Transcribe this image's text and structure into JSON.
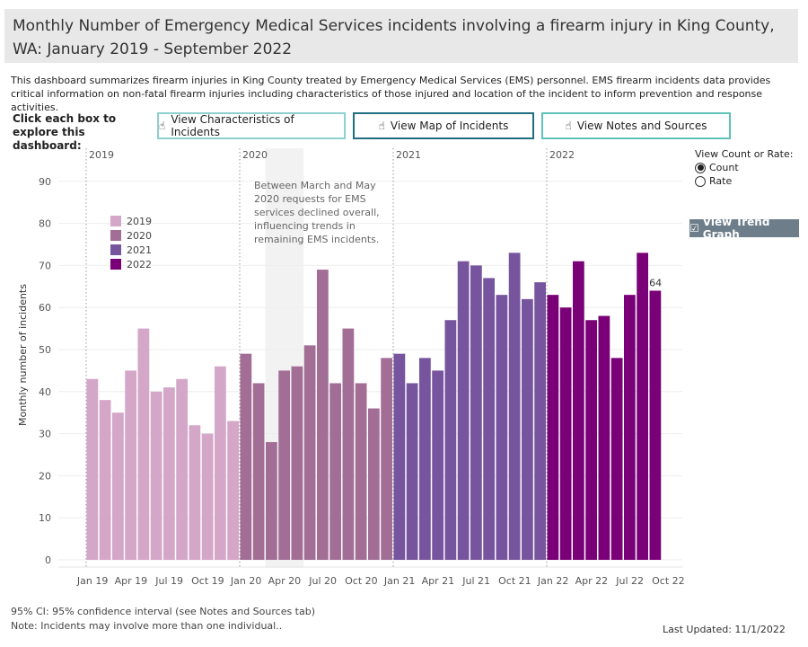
{
  "header": {
    "title": "Monthly Number of Emergency Medical Services incidents involving a firearm injury in King County, WA: January 2019 - September 2022",
    "description": "This dashboard summarizes firearm injuries in King County treated by Emergency Medical Services (EMS) personnel. EMS firearm incidents data provides critical information on non-fatal firearm injuries including characteristics of those injured and location of the incident to inform prevention and response activities."
  },
  "nav": {
    "prompt": "Click each box to explore this dashboard:",
    "buttons": [
      "View Characteristics of Incidents",
      "View Map of Incidents",
      "View Notes and Sources"
    ],
    "icon": "hand-pointer-icon"
  },
  "controls": {
    "label": "View Count or Rate:",
    "options": [
      "Count",
      "Rate"
    ],
    "selected": "Count",
    "trend_button": "View Trend Graph"
  },
  "annotation": "Between March and May 2020 requests for EMS services declined overall, influencing trends in remaining EMS incidents.",
  "footer": {
    "ci": "95% CI: 95% confidence interval (see Notes and Sources tab)",
    "note": "Note: Incidents may involve more than one individual..",
    "updated": "Last Updated: 11/1/2022"
  },
  "chart_data": {
    "type": "bar",
    "title": "",
    "xlabel": "",
    "ylabel": "Monthly number of incidents",
    "ylim": [
      0,
      95
    ],
    "yticks": [
      0,
      10,
      20,
      30,
      40,
      50,
      60,
      70,
      80,
      90
    ],
    "grid": true,
    "legend_placement": "top-left",
    "year_labels": [
      "2019",
      "2020",
      "2021",
      "2022"
    ],
    "xtick_labels": [
      "Jan 19",
      "Apr 19",
      "Jul 19",
      "Oct 19",
      "Jan 20",
      "Apr 20",
      "Jul 20",
      "Oct 20",
      "Jan 21",
      "Apr 21",
      "Jul 21",
      "Oct 21",
      "Jan 22",
      "Apr 22",
      "Jul 22",
      "Oct 22"
    ],
    "colors": {
      "2019": "#d4a6c8",
      "2020": "#a26e96",
      "2021": "#76549e",
      "2022": "#7a0077"
    },
    "series": [
      {
        "name": "2019",
        "values": [
          43,
          38,
          35,
          45,
          55,
          40,
          41,
          43,
          32,
          30,
          46,
          33
        ]
      },
      {
        "name": "2020",
        "values": [
          49,
          42,
          28,
          45,
          46,
          51,
          69,
          42,
          55,
          42,
          36,
          48
        ]
      },
      {
        "name": "2021",
        "values": [
          49,
          42,
          48,
          45,
          57,
          71,
          70,
          67,
          63,
          73,
          62,
          66
        ]
      },
      {
        "name": "2022",
        "values": [
          63,
          60,
          71,
          57,
          58,
          48,
          63,
          73,
          64
        ]
      }
    ],
    "data_labels": [
      {
        "month": "Sep 22",
        "value": "64"
      }
    ],
    "shaded_period": [
      "Mar 20",
      "May 20"
    ]
  }
}
